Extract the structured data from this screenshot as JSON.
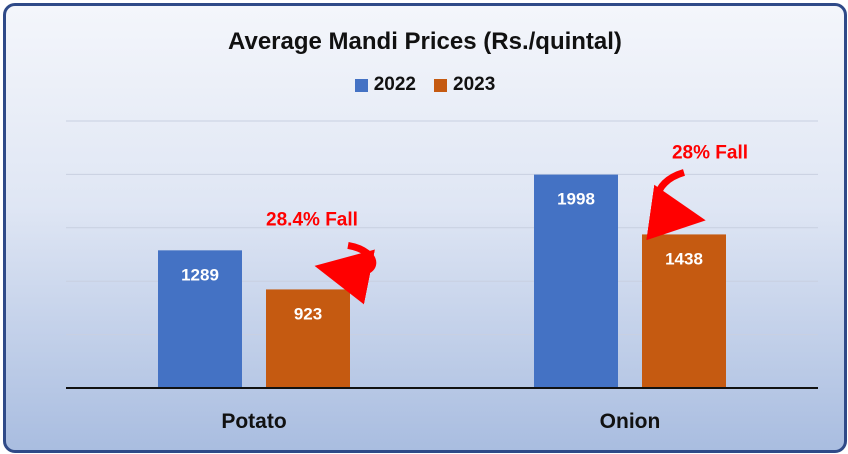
{
  "chart_data": {
    "type": "bar",
    "title": "Average Mandi Prices (Rs./quintal)",
    "categories": [
      "Potato",
      "Onion"
    ],
    "series": [
      {
        "name": "2022",
        "values": [
          1289,
          1998
        ],
        "color": "#4472c4"
      },
      {
        "name": "2023",
        "values": [
          923,
          1438
        ],
        "color": "#c55a11"
      }
    ],
    "ylim": [
      0,
      2500
    ],
    "grid": true,
    "legend_position": "top",
    "annotations": [
      {
        "category": "Potato",
        "text": "28.4% Fall",
        "color": "#ff0000"
      },
      {
        "category": "Onion",
        "text": "28% Fall",
        "color": "#ff0000"
      }
    ]
  }
}
